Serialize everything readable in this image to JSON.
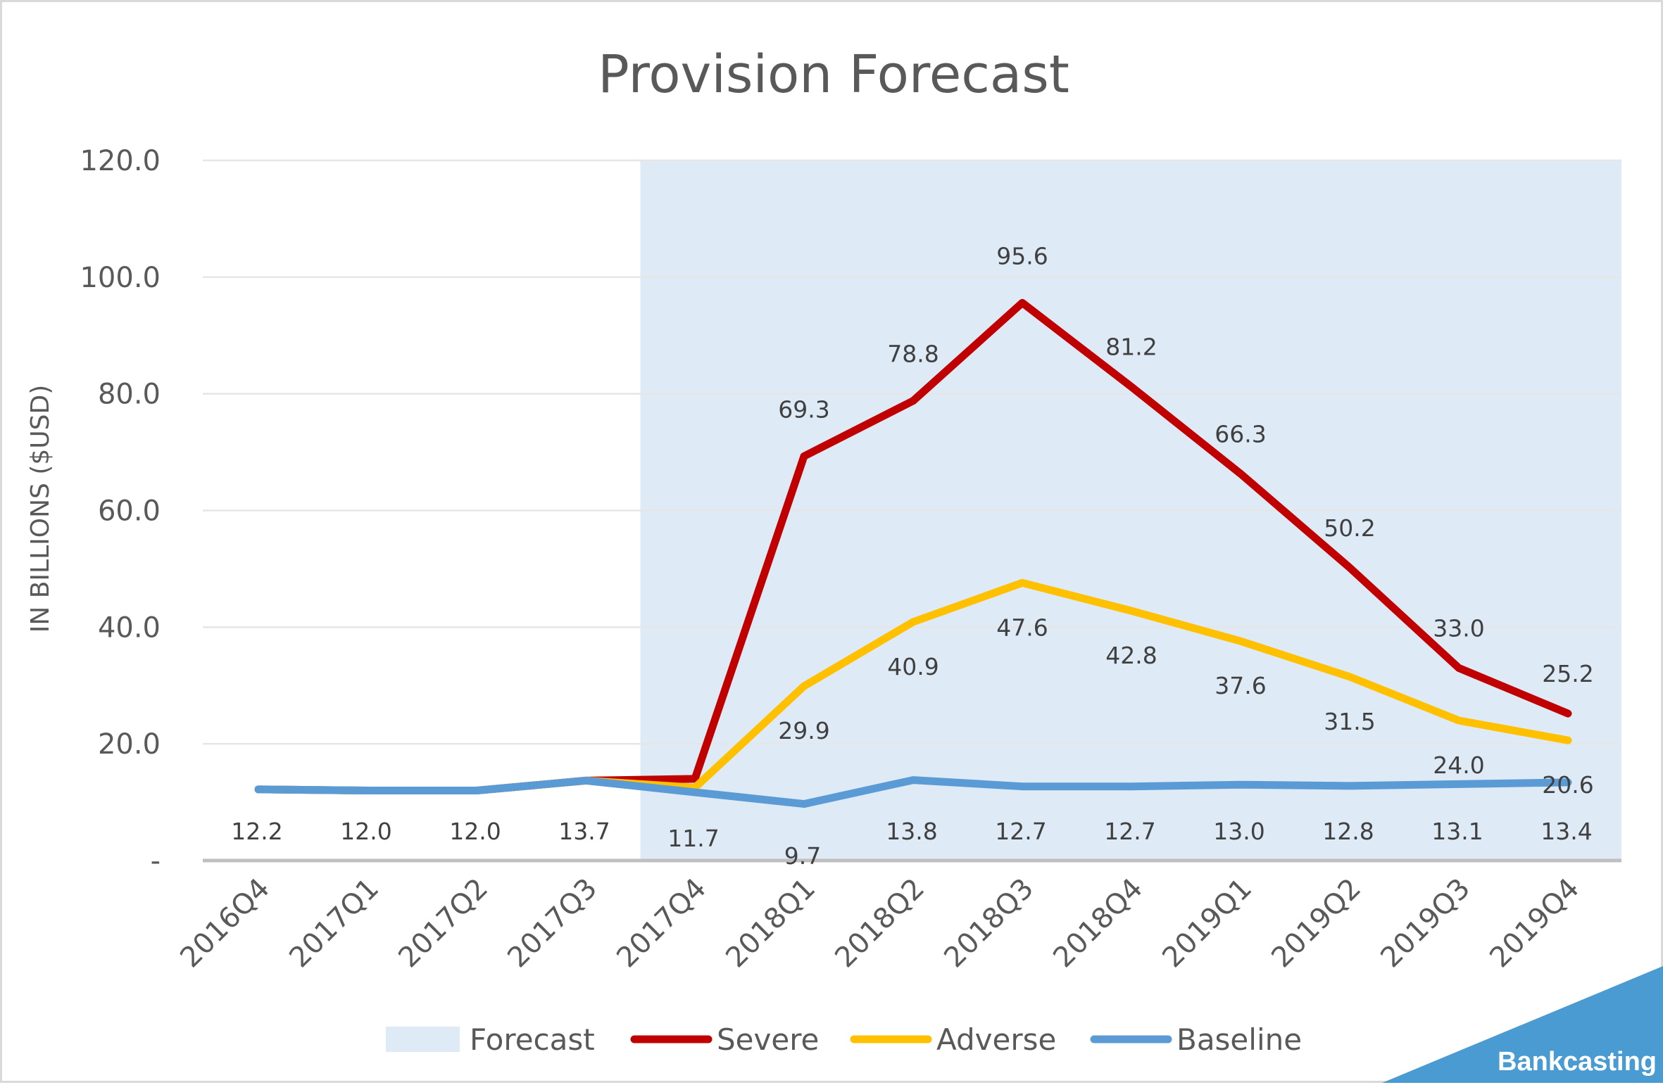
{
  "chart_data": {
    "type": "line",
    "title": "Provision Forecast",
    "xlabel": "",
    "ylabel": "IN BILLIONS ($USD)",
    "categories": [
      "2016Q4",
      "2017Q1",
      "2017Q2",
      "2017Q3",
      "2017Q4",
      "2018Q1",
      "2018Q2",
      "2018Q3",
      "2018Q4",
      "2019Q1",
      "2019Q2",
      "2019Q3",
      "2019Q4"
    ],
    "ylim": [
      0,
      120
    ],
    "yticks": [
      0,
      20,
      40,
      60,
      80,
      100,
      120
    ],
    "ytick_labels": [
      "-",
      "20.0",
      "40.0",
      "60.0",
      "80.0",
      "100.0",
      "120.0"
    ],
    "grid": true,
    "legend_position": "bottom",
    "forecast_region": {
      "name": "Forecast",
      "start": "2017Q3",
      "end": "2019Q4",
      "color": "#deebf7"
    },
    "series": [
      {
        "name": "Severe",
        "color": "#c00000",
        "values": [
          12.2,
          12.0,
          12.0,
          13.7,
          14.0,
          69.3,
          78.8,
          95.6,
          81.2,
          66.3,
          50.2,
          33.0,
          25.2
        ],
        "labels": [
          "",
          "",
          "",
          "",
          "",
          "69.3",
          "78.8",
          "95.6",
          "81.2",
          "66.3",
          "50.2",
          "33.0",
          "25.2"
        ]
      },
      {
        "name": "Adverse",
        "color": "#ffc000",
        "values": [
          12.2,
          12.0,
          12.0,
          13.7,
          12.5,
          29.9,
          40.9,
          47.6,
          42.8,
          37.6,
          31.5,
          24.0,
          20.6
        ],
        "labels": [
          "",
          "",
          "",
          "",
          "",
          "29.9",
          "40.9",
          "47.6",
          "42.8",
          "37.6",
          "31.5",
          "24.0",
          "20.6"
        ]
      },
      {
        "name": "Baseline",
        "color": "#5b9bd5",
        "values": [
          12.2,
          12.0,
          12.0,
          13.7,
          11.7,
          9.7,
          13.8,
          12.7,
          12.7,
          13.0,
          12.8,
          13.1,
          13.4
        ],
        "labels": [
          "12.2",
          "12.0",
          "12.0",
          "13.7",
          "11.7",
          "9.7",
          "13.8",
          "12.7",
          "12.7",
          "13.0",
          "12.8",
          "13.1",
          "13.4"
        ]
      }
    ]
  },
  "branding": {
    "text": "Bankcasting",
    "color": "#4a9bd1"
  }
}
